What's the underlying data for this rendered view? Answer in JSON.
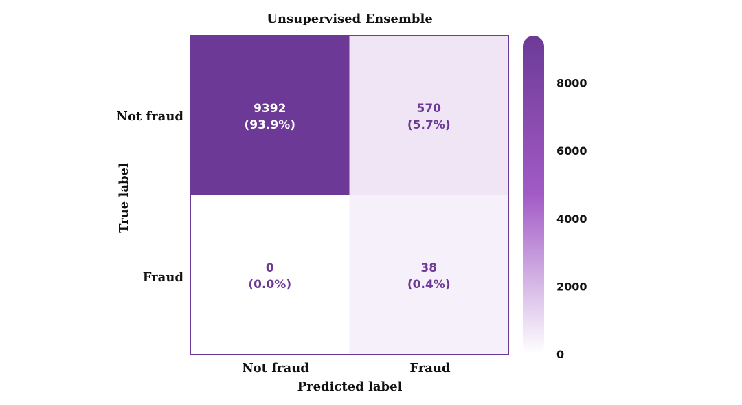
{
  "chart_data": {
    "type": "heatmap",
    "title": "Unsupervised Ensemble",
    "xlabel": "Predicted label",
    "ylabel": "True label",
    "x_categories": [
      "Not fraud",
      "Fraud"
    ],
    "y_categories": [
      "Not fraud",
      "Fraud"
    ],
    "values": [
      [
        9392,
        570
      ],
      [
        0,
        38
      ]
    ],
    "cell_labels": [
      [
        "9392",
        "(93.9%)",
        "570",
        "(5.7%)"
      ],
      [
        "0",
        "(0.0%)",
        "38",
        "(0.4%)"
      ]
    ],
    "colorbar": {
      "range": [
        0,
        9392
      ],
      "ticks": [
        0,
        2000,
        4000,
        6000,
        8000
      ],
      "tick_labels": [
        "0",
        "2000",
        "4000",
        "6000",
        "8000"
      ],
      "low_color": "#ffffff",
      "mid_color": "#a25bc6",
      "high_color": "#6c3a96"
    },
    "colors": {
      "dark_text": "#ffffff",
      "light_text": "#6c3a96",
      "frame": "#6c3a96"
    }
  }
}
